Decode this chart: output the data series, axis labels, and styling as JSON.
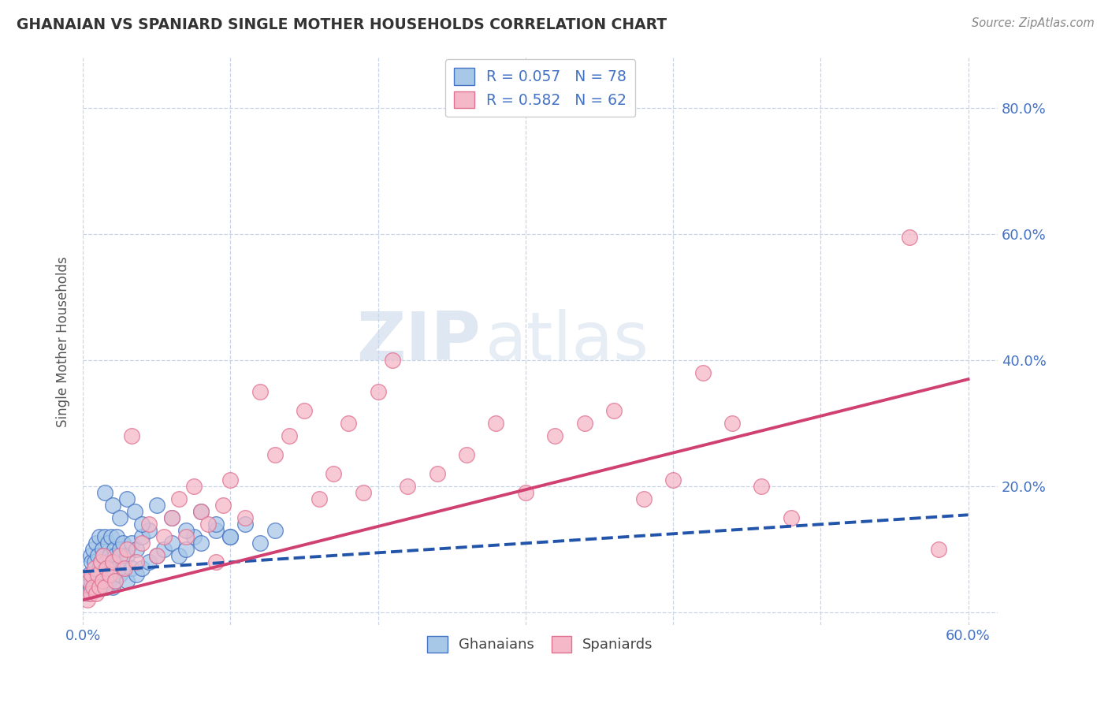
{
  "title": "GHANAIAN VS SPANIARD SINGLE MOTHER HOUSEHOLDS CORRELATION CHART",
  "source_text": "Source: ZipAtlas.com",
  "ylabel": "Single Mother Households",
  "xlim": [
    0.0,
    0.62
  ],
  "ylim": [
    -0.02,
    0.88
  ],
  "ytick_vals": [
    0.0,
    0.2,
    0.4,
    0.6,
    0.8
  ],
  "ytick_labels": [
    "",
    "20.0%",
    "40.0%",
    "60.0%",
    "80.0%"
  ],
  "xtick_vals": [
    0.0,
    0.1,
    0.2,
    0.3,
    0.4,
    0.5,
    0.6
  ],
  "xtick_labels": [
    "0.0%",
    "",
    "",
    "",
    "",
    "",
    "60.0%"
  ],
  "legend_line1": "R = 0.057   N = 78",
  "legend_line2": "R = 0.582   N = 62",
  "blue_color": "#a8c8e8",
  "blue_edge": "#4472c4",
  "pink_color": "#f4b8c8",
  "pink_edge": "#e07090",
  "blue_trend_color": "#2255aa",
  "pink_trend_color": "#d04070",
  "watermark_zip": "ZIP",
  "watermark_atlas": "atlas",
  "grid_color": "#c8d4e8",
  "background": "#ffffff",
  "title_color": "#333333",
  "tick_color": "#4472c4",
  "ylabel_color": "#555555",
  "source_color": "#888888",
  "blue_x": [
    0.003,
    0.004,
    0.005,
    0.005,
    0.006,
    0.006,
    0.007,
    0.007,
    0.008,
    0.008,
    0.009,
    0.009,
    0.01,
    0.01,
    0.011,
    0.011,
    0.012,
    0.012,
    0.013,
    0.013,
    0.014,
    0.014,
    0.015,
    0.015,
    0.016,
    0.016,
    0.017,
    0.017,
    0.018,
    0.018,
    0.019,
    0.019,
    0.02,
    0.02,
    0.021,
    0.021,
    0.022,
    0.022,
    0.023,
    0.023,
    0.025,
    0.025,
    0.027,
    0.027,
    0.03,
    0.03,
    0.033,
    0.033,
    0.036,
    0.036,
    0.04,
    0.04,
    0.045,
    0.045,
    0.05,
    0.055,
    0.06,
    0.065,
    0.07,
    0.075,
    0.08,
    0.09,
    0.1,
    0.11,
    0.12,
    0.13,
    0.015,
    0.02,
    0.025,
    0.03,
    0.035,
    0.04,
    0.05,
    0.06,
    0.07,
    0.08,
    0.09,
    0.1
  ],
  "blue_y": [
    0.03,
    0.06,
    0.04,
    0.09,
    0.05,
    0.08,
    0.06,
    0.1,
    0.04,
    0.08,
    0.06,
    0.11,
    0.05,
    0.09,
    0.07,
    0.12,
    0.04,
    0.08,
    0.06,
    0.1,
    0.05,
    0.09,
    0.07,
    0.12,
    0.04,
    0.08,
    0.06,
    0.11,
    0.05,
    0.09,
    0.07,
    0.12,
    0.04,
    0.08,
    0.06,
    0.1,
    0.05,
    0.09,
    0.07,
    0.12,
    0.06,
    0.1,
    0.07,
    0.11,
    0.05,
    0.09,
    0.07,
    0.11,
    0.06,
    0.1,
    0.07,
    0.12,
    0.08,
    0.13,
    0.09,
    0.1,
    0.11,
    0.09,
    0.1,
    0.12,
    0.11,
    0.13,
    0.12,
    0.14,
    0.11,
    0.13,
    0.19,
    0.17,
    0.15,
    0.18,
    0.16,
    0.14,
    0.17,
    0.15,
    0.13,
    0.16,
    0.14,
    0.12
  ],
  "pink_x": [
    0.003,
    0.004,
    0.005,
    0.006,
    0.007,
    0.008,
    0.009,
    0.01,
    0.011,
    0.012,
    0.013,
    0.014,
    0.015,
    0.016,
    0.018,
    0.02,
    0.022,
    0.025,
    0.028,
    0.03,
    0.033,
    0.036,
    0.04,
    0.045,
    0.05,
    0.055,
    0.06,
    0.065,
    0.07,
    0.075,
    0.08,
    0.085,
    0.09,
    0.095,
    0.1,
    0.11,
    0.12,
    0.13,
    0.14,
    0.15,
    0.16,
    0.17,
    0.18,
    0.19,
    0.2,
    0.21,
    0.22,
    0.24,
    0.26,
    0.28,
    0.3,
    0.32,
    0.34,
    0.36,
    0.38,
    0.4,
    0.42,
    0.44,
    0.46,
    0.48,
    0.56,
    0.58
  ],
  "pink_y": [
    0.02,
    0.05,
    0.03,
    0.06,
    0.04,
    0.07,
    0.03,
    0.06,
    0.04,
    0.08,
    0.05,
    0.09,
    0.04,
    0.07,
    0.06,
    0.08,
    0.05,
    0.09,
    0.07,
    0.1,
    0.28,
    0.08,
    0.11,
    0.14,
    0.09,
    0.12,
    0.15,
    0.18,
    0.12,
    0.2,
    0.16,
    0.14,
    0.08,
    0.17,
    0.21,
    0.15,
    0.35,
    0.25,
    0.28,
    0.32,
    0.18,
    0.22,
    0.3,
    0.19,
    0.35,
    0.4,
    0.2,
    0.22,
    0.25,
    0.3,
    0.19,
    0.28,
    0.3,
    0.32,
    0.18,
    0.21,
    0.38,
    0.3,
    0.2,
    0.15,
    0.595,
    0.1
  ],
  "blue_trend_x": [
    0.0,
    0.6
  ],
  "blue_trend_y": [
    0.065,
    0.155
  ],
  "pink_trend_x": [
    0.0,
    0.6
  ],
  "pink_trend_y": [
    0.02,
    0.37
  ]
}
